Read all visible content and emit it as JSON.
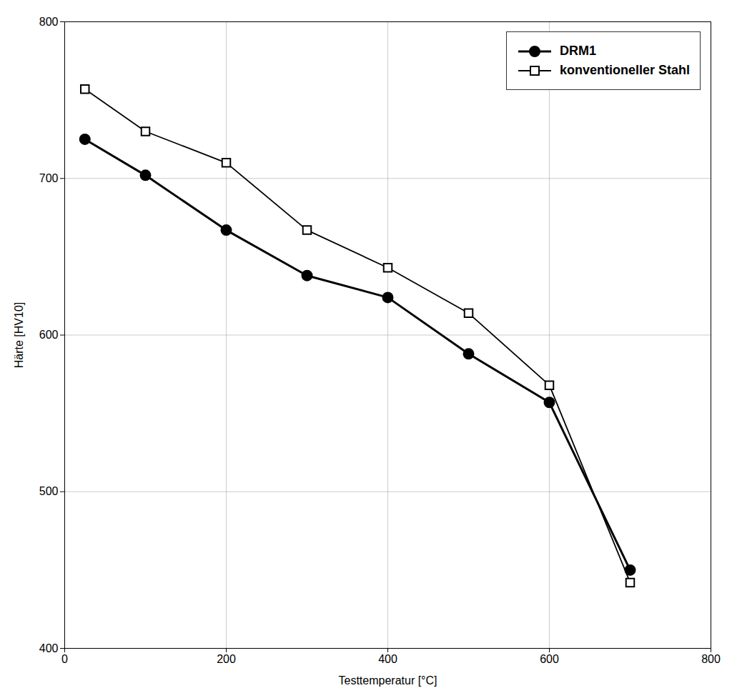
{
  "chart_data": {
    "type": "line",
    "xlabel": "Testtemperatur [°C]",
    "ylabel": "Härte [HV10]",
    "x": [
      25,
      100,
      200,
      300,
      400,
      500,
      600,
      700
    ],
    "series": [
      {
        "name": "konventioneller Stahl",
        "color": "#000000",
        "marker": "square",
        "line_style": "solid",
        "values": [
          757,
          730,
          710,
          667,
          643,
          614,
          568,
          442
        ]
      },
      {
        "name": "DRM1",
        "color": "#000000",
        "marker": "circle",
        "line_style": "solid",
        "values": [
          725,
          702,
          667,
          638,
          624,
          588,
          557,
          450
        ]
      }
    ],
    "xlim": [
      0,
      800
    ],
    "ylim": [
      400,
      800
    ],
    "xticks": [
      0,
      200,
      400,
      600,
      800
    ],
    "yticks": [
      400,
      500,
      600,
      700,
      800
    ],
    "grid": true,
    "legend": "upper right"
  }
}
